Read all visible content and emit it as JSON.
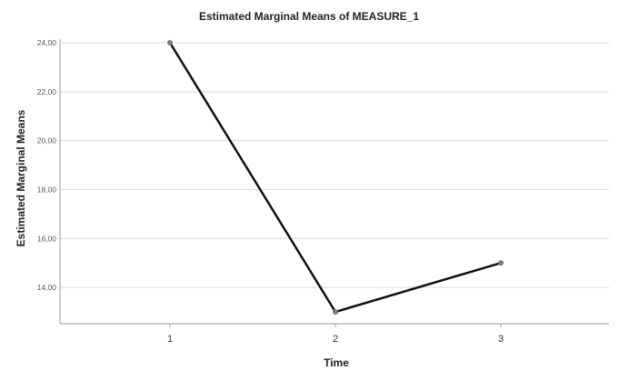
{
  "chart_data": {
    "type": "line",
    "title": "Estimated Marginal Means of MEASURE_1",
    "xlabel": "Time",
    "ylabel": "Estimated Marginal Means",
    "categories": [
      "1",
      "2",
      "3"
    ],
    "series": [
      {
        "values": [
          24.0,
          13.0,
          15.0
        ]
      }
    ],
    "ylim": [
      13.0,
      24.0
    ],
    "yticks": [
      14.0,
      16.0,
      18.0,
      20.0,
      22.0,
      24.0
    ],
    "ytick_labels": [
      "14,00",
      "16,00",
      "18,00",
      "20,00",
      "22,00",
      "24,00"
    ],
    "grid": "horizontal",
    "colors": {
      "line": "#111111",
      "marker": "#7a7a7a",
      "grid": "#d9d9d9",
      "axis": "#999999"
    }
  }
}
